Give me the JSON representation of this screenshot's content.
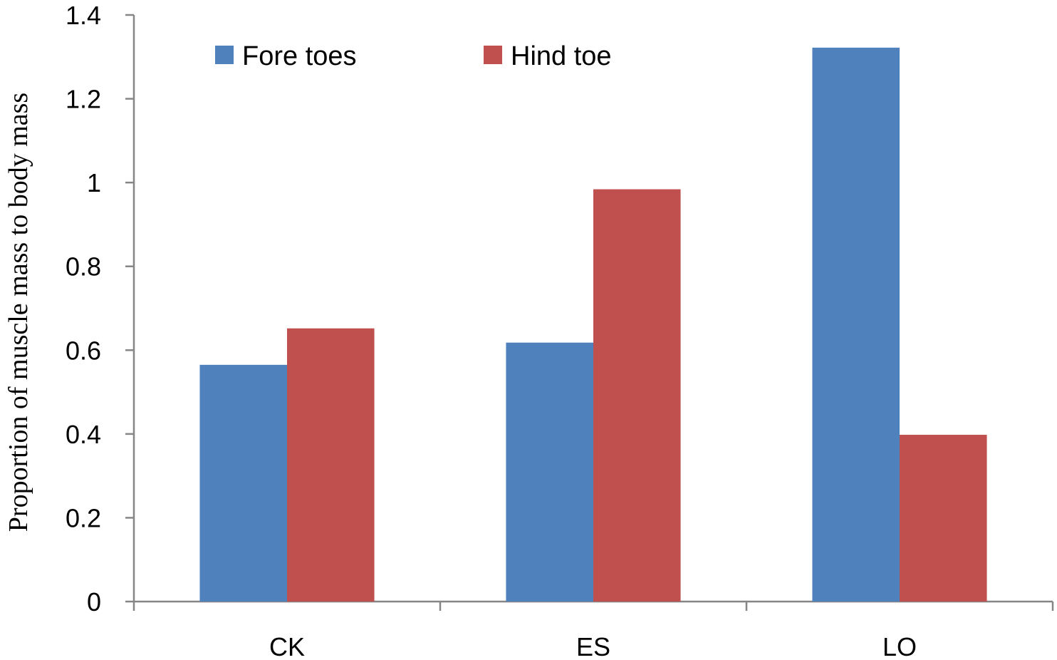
{
  "chart_data": {
    "type": "bar",
    "title": "",
    "xlabel": "",
    "ylabel": "Proportion of muscle mass to body mass",
    "categories": [
      "CK",
      "ES",
      "LO"
    ],
    "series": [
      {
        "name": "Fore toes",
        "color": "#4F81BD",
        "values": [
          0.565,
          0.618,
          1.322
        ]
      },
      {
        "name": "Hind toe",
        "color": "#C0504D",
        "values": [
          0.652,
          0.984,
          0.398
        ]
      }
    ],
    "ylim": [
      0,
      1.4
    ],
    "yticks": [
      0,
      0.2,
      0.4,
      0.6,
      0.8,
      1,
      1.2,
      1.4
    ],
    "ytick_labels": [
      "0",
      "0.2",
      "0.4",
      "0.6",
      "0.8",
      "1",
      "1.2",
      "1.4"
    ],
    "grid": false,
    "legend_position": "top",
    "axis_color": "#868686"
  }
}
